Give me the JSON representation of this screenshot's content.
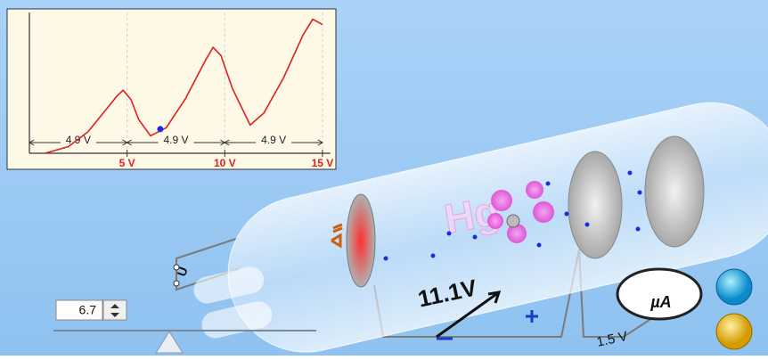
{
  "chart_data": {
    "type": "line",
    "x": [
      0.8,
      2,
      3,
      4,
      4.5,
      4.8,
      5.2,
      5.6,
      6.2,
      7,
      8,
      9,
      9.4,
      9.8,
      10.4,
      11.3,
      12,
      13,
      14,
      14.5,
      15
    ],
    "series": [
      {
        "color": "#e02020",
        "values": [
          0,
          0.5,
          1.6,
          3.4,
          4.3,
          4.7,
          4.0,
          2.5,
          1.3,
          1.9,
          4.1,
          6.9,
          7.9,
          7.3,
          4.8,
          2.1,
          3.0,
          5.6,
          8.8,
          10,
          9.6
        ]
      }
    ],
    "marker": {
      "x": 6.7,
      "y": 1.8,
      "color": "#1a2be0"
    },
    "xlim": [
      0,
      15.4
    ],
    "ylim": [
      0,
      10.5
    ],
    "xticks": [
      {
        "value": 5,
        "label": "5 V"
      },
      {
        "value": 10,
        "label": "10 V"
      },
      {
        "value": 15,
        "label": "15 V"
      }
    ],
    "annotations": [
      "4.9 V",
      "4.9 V",
      "4.9 V"
    ]
  },
  "scene": {
    "gas_label": "Hg",
    "accelerating_voltage": "11.1V",
    "retarding_voltage": "1.5 V",
    "meter_label": "µA",
    "heater_label": "U"
  },
  "controls": {
    "voltage_input": "6.7"
  }
}
